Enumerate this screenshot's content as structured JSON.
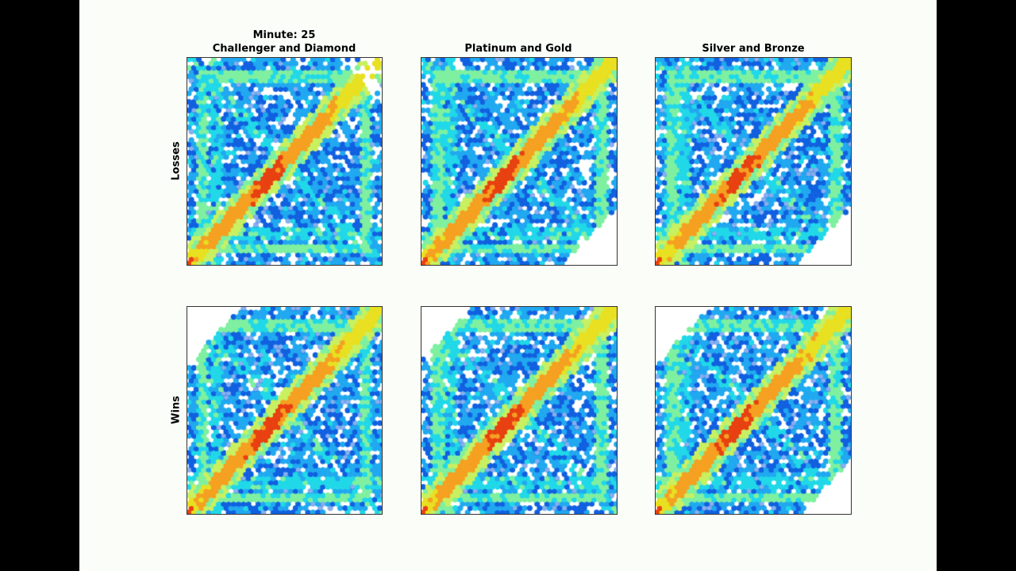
{
  "figure": {
    "suptitle": "Minute: 25",
    "columns": [
      "Challenger and Diamond",
      "Platinum and Gold",
      "Silver and Bronze"
    ],
    "rows": [
      "Losses",
      "Wins"
    ]
  },
  "colors": {
    "outer_background": "#000000",
    "page_background": "#fbfdf9",
    "axes_border": "#333333",
    "colormap": [
      "#00008f",
      "#0010d0",
      "#1060e0",
      "#20a8f0",
      "#20d8e8",
      "#7ef0a0",
      "#c8f060",
      "#e8e020",
      "#f5a020",
      "#e84010"
    ]
  },
  "chart_data": {
    "type": "heatmap",
    "subtype": "hexbin",
    "title": "Minute: 25",
    "colormap": "jet",
    "xlabel": "",
    "ylabel": "",
    "ticks": false,
    "grid": false,
    "legend": null,
    "layout": {
      "rows": 2,
      "cols": 3
    },
    "row_labels": [
      "Losses",
      "Wins"
    ],
    "col_labels": [
      "Challenger and Diamond",
      "Platinum and Gold",
      "Silver and Bronze"
    ],
    "panels": [
      {
        "row": "Losses",
        "col": "Challenger and Diamond",
        "seed": 11,
        "diagonal_peak": "orange",
        "description": "Dense orange/yellow diagonal band from bottom-left to top-right; cyan/green outer ring and crossing lines; sparse blue bins elsewhere; top-right corner clipped"
      },
      {
        "row": "Losses",
        "col": "Platinum and Gold",
        "seed": 23,
        "diagonal_peak": "orange",
        "description": "Similar diagonal hotspot near center; green rounded-square outline; bottom-right corner empty"
      },
      {
        "row": "Losses",
        "col": "Silver and Bronze",
        "seed": 37,
        "diagonal_peak": "orange",
        "description": "Diagonal hotspot, more cyan/green fill overall; bottom-right corner empty"
      },
      {
        "row": "Wins",
        "col": "Challenger and Diamond",
        "seed": 41,
        "diagonal_peak": "orange",
        "description": "Diagonal hotspot slightly above center; top-left corner empty; dark blue bins in lower-left"
      },
      {
        "row": "Wins",
        "col": "Platinum and Gold",
        "seed": 53,
        "diagonal_peak": "orange",
        "description": "Diagonal hotspot; top-left corner empty; dark blue cluster lower-left below diagonal"
      },
      {
        "row": "Wins",
        "col": "Silver and Bronze",
        "seed": 67,
        "diagonal_peak": "orange",
        "description": "Diagonal hotspot; top-left and bottom-right corners empty"
      }
    ]
  }
}
